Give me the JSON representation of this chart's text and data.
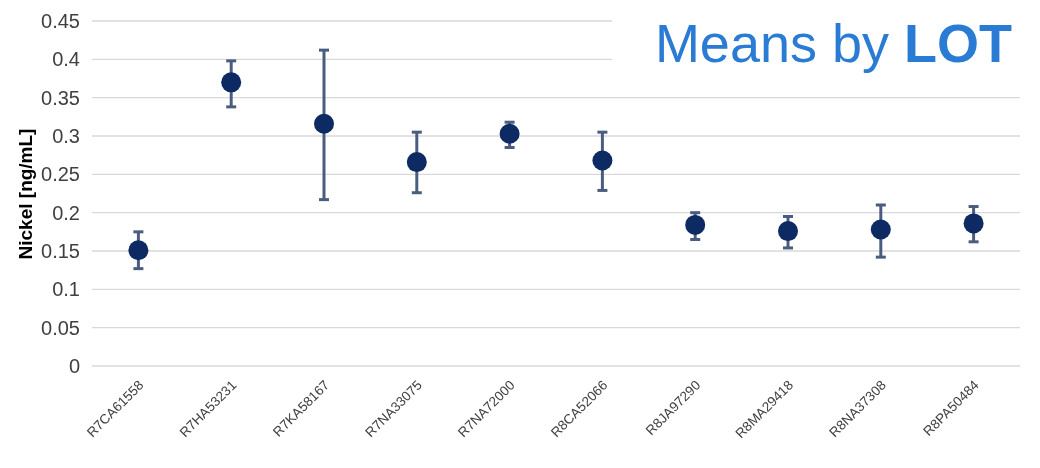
{
  "chart_data": {
    "type": "scatter",
    "title": "Means by LOT",
    "ylabel": "Nickel [ng/mL]",
    "categories": [
      "R7CA61558",
      "R7HA53231",
      "R7KA58167",
      "R7NA33075",
      "R7NA72000",
      "R8CA52066",
      "R8JA97290",
      "R8MA29418",
      "R8NA37308",
      "R8PA50484"
    ],
    "series": [
      {
        "color": "#0d2a63",
        "values": [
          0.151,
          0.37,
          0.316,
          0.266,
          0.303,
          0.268,
          0.184,
          0.176,
          0.178,
          0.186
        ],
        "errors": [
          [
            0.127,
            0.175
          ],
          [
            0.338,
            0.398
          ],
          [
            0.217,
            0.412
          ],
          [
            0.226,
            0.305
          ],
          [
            0.285,
            0.318
          ],
          [
            0.229,
            0.305
          ],
          [
            0.165,
            0.2
          ],
          [
            0.154,
            0.195
          ],
          [
            0.142,
            0.21
          ],
          [
            0.162,
            0.208
          ]
        ]
      }
    ],
    "ylim": [
      0,
      0.45
    ],
    "yticks": [
      0,
      0.05,
      0.1,
      0.15,
      0.2,
      0.25,
      0.3,
      0.35,
      0.4,
      0.45
    ],
    "grid": "y",
    "marker": "circle"
  }
}
